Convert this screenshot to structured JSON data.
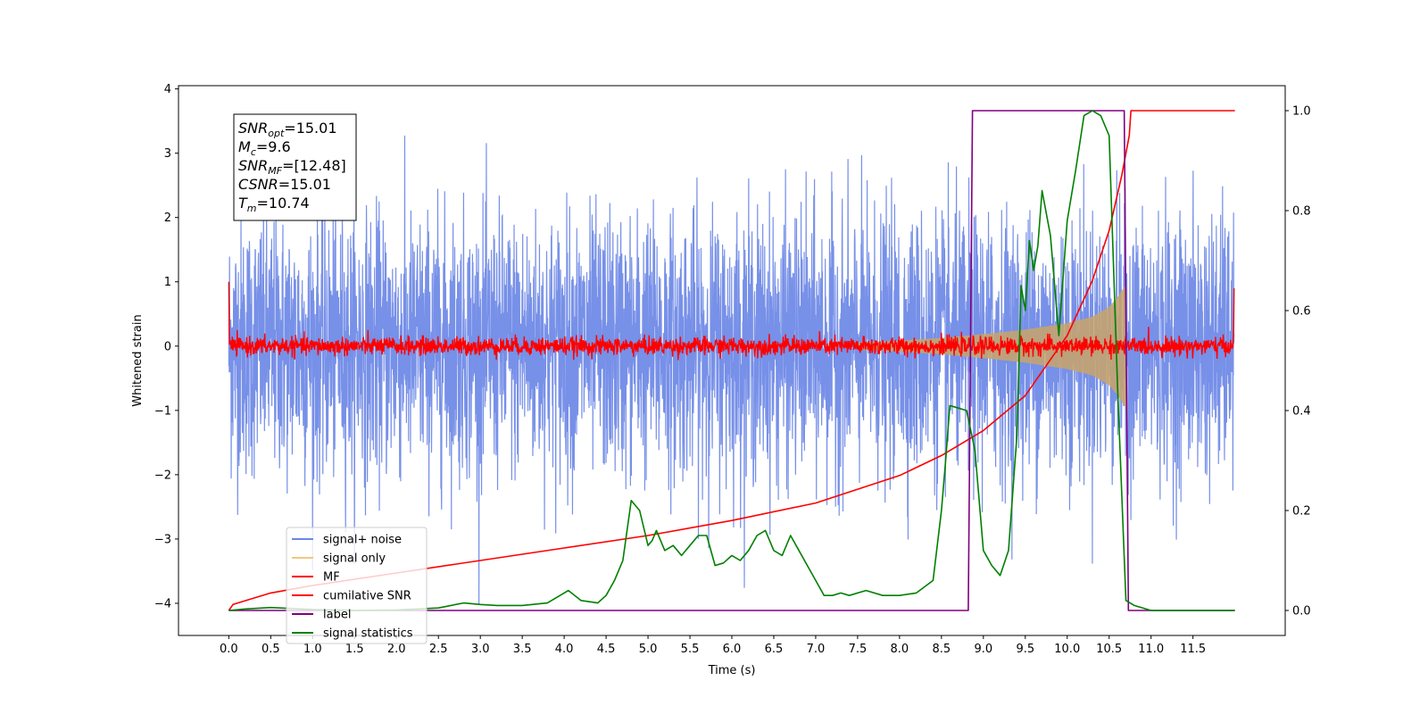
{
  "chart_data": {
    "type": "line",
    "title": "",
    "xlabel": "Time (s)",
    "ylabel": "Whitened strain",
    "xlim": [
      -0.6,
      12.6
    ],
    "ylim_left": [
      -4.5,
      4.05
    ],
    "ylim_right": [
      -0.05,
      1.05
    ],
    "xticks": [
      0.0,
      0.5,
      1.0,
      1.5,
      2.0,
      2.5,
      3.0,
      3.5,
      4.0,
      4.5,
      5.0,
      5.5,
      6.0,
      6.5,
      7.0,
      7.5,
      8.0,
      8.5,
      9.0,
      9.5,
      10.0,
      10.5,
      11.0,
      11.5
    ],
    "xtick_labels": [
      "0.0",
      "0.5",
      "1.0",
      "1.5",
      "2.0",
      "2.5",
      "3.0",
      "3.5",
      "4.0",
      "4.5",
      "5.0",
      "5.5",
      "6.0",
      "6.5",
      "7.0",
      "7.5",
      "8.0",
      "8.5",
      "9.0",
      "9.5",
      "10.0",
      "10.5",
      "11.0",
      "11.5"
    ],
    "yticks_left": [
      4,
      3,
      2,
      1,
      0,
      -1,
      -2,
      -3,
      -4
    ],
    "ytick_labels_left": [
      "4",
      "3",
      "2",
      "1",
      "0",
      "−1",
      "−2",
      "−3",
      "−4"
    ],
    "yticks_right": [
      1.0,
      0.8,
      0.6,
      0.4,
      0.2,
      0.0
    ],
    "ytick_labels_right": [
      "1.0",
      "0.8",
      "0.6",
      "0.4",
      "0.2",
      "0.0"
    ],
    "grid": false,
    "legend_position": "lower-left",
    "legend": [
      {
        "label": "signal+ noise",
        "color": "#6b87e6"
      },
      {
        "label": "signal only",
        "color": "#f5c77e"
      },
      {
        "label": "MF",
        "color": "#ff0000"
      },
      {
        "label": "cumilative SNR",
        "color": "#ff0000"
      },
      {
        "label": "label",
        "color": "#800080"
      },
      {
        "label": "signal statistics",
        "color": "#008000"
      }
    ],
    "info_box": [
      {
        "base": "SNR",
        "sub": "opt",
        "value": "=15.01"
      },
      {
        "base": "M",
        "sub": "c",
        "value": "=9.6"
      },
      {
        "base": "SNR",
        "sub": "MF",
        "value": "=[12.48]"
      },
      {
        "base": "CSNR",
        "sub": "",
        "value": "=15.01"
      },
      {
        "base": "T",
        "sub": "m",
        "value": "=10.74"
      }
    ],
    "series": [
      {
        "name": "signal+ noise",
        "axis": "left",
        "kind": "noise",
        "x_range": [
          0.0,
          11.99
        ],
        "std": 1.0,
        "peaks_max": 3.65,
        "peaks_min": -4.15
      },
      {
        "name": "signal only",
        "axis": "left",
        "kind": "chirp-envelope",
        "x": [
          7.5,
          8.0,
          8.5,
          9.0,
          9.5,
          10.0,
          10.3,
          10.5,
          10.6,
          10.7
        ],
        "y": [
          0.05,
          0.08,
          0.12,
          0.18,
          0.25,
          0.35,
          0.45,
          0.6,
          0.75,
          0.95
        ]
      },
      {
        "name": "MF",
        "axis": "left",
        "kind": "noise",
        "x_range": [
          0.0,
          11.99
        ],
        "std": 0.07,
        "start_value": 1.0,
        "end_value": 0.9
      },
      {
        "name": "cumilative SNR",
        "axis": "right",
        "x": [
          0.0,
          0.05,
          0.5,
          1.0,
          2.0,
          3.0,
          4.0,
          5.0,
          6.0,
          7.0,
          8.0,
          8.5,
          9.0,
          9.5,
          10.0,
          10.3,
          10.5,
          10.65,
          10.74,
          10.76,
          12.0
        ],
        "y": [
          0.0,
          0.012,
          0.035,
          0.05,
          0.075,
          0.1,
          0.125,
          0.15,
          0.18,
          0.215,
          0.27,
          0.31,
          0.36,
          0.43,
          0.55,
          0.66,
          0.76,
          0.87,
          0.95,
          1.0,
          1.0
        ]
      },
      {
        "name": "label",
        "axis": "right",
        "x": [
          0.0,
          8.82,
          8.87,
          10.68,
          10.73,
          12.0
        ],
        "y": [
          0.0,
          0.0,
          1.0,
          1.0,
          0.0,
          0.0
        ]
      },
      {
        "name": "signal statistics",
        "axis": "right",
        "x": [
          0.0,
          0.2,
          0.5,
          1.0,
          1.5,
          2.0,
          2.5,
          2.8,
          3.0,
          3.2,
          3.5,
          3.8,
          4.0,
          4.05,
          4.2,
          4.4,
          4.5,
          4.6,
          4.7,
          4.8,
          4.85,
          4.9,
          5.0,
          5.05,
          5.1,
          5.2,
          5.3,
          5.4,
          5.5,
          5.6,
          5.7,
          5.8,
          5.9,
          6.0,
          6.1,
          6.2,
          6.3,
          6.4,
          6.5,
          6.6,
          6.7,
          6.8,
          6.9,
          7.0,
          7.1,
          7.2,
          7.3,
          7.4,
          7.6,
          7.8,
          8.0,
          8.2,
          8.4,
          8.5,
          8.55,
          8.6,
          8.7,
          8.8,
          8.9,
          9.0,
          9.1,
          9.2,
          9.3,
          9.4,
          9.45,
          9.5,
          9.55,
          9.6,
          9.65,
          9.7,
          9.8,
          9.9,
          10.0,
          10.1,
          10.2,
          10.3,
          10.4,
          10.5,
          10.6,
          10.7,
          10.8,
          11.0,
          12.0
        ],
        "y": [
          0.0,
          0.003,
          0.006,
          0.002,
          0.0,
          0.001,
          0.005,
          0.015,
          0.012,
          0.01,
          0.01,
          0.015,
          0.035,
          0.04,
          0.02,
          0.015,
          0.03,
          0.06,
          0.1,
          0.22,
          0.21,
          0.2,
          0.13,
          0.14,
          0.16,
          0.12,
          0.13,
          0.11,
          0.13,
          0.15,
          0.15,
          0.09,
          0.095,
          0.11,
          0.1,
          0.12,
          0.15,
          0.16,
          0.12,
          0.11,
          0.15,
          0.12,
          0.09,
          0.06,
          0.03,
          0.03,
          0.035,
          0.03,
          0.04,
          0.03,
          0.03,
          0.035,
          0.06,
          0.2,
          0.3,
          0.41,
          0.405,
          0.4,
          0.32,
          0.12,
          0.09,
          0.07,
          0.12,
          0.35,
          0.65,
          0.6,
          0.74,
          0.68,
          0.73,
          0.84,
          0.75,
          0.55,
          0.78,
          0.88,
          0.99,
          1.0,
          0.99,
          0.95,
          0.45,
          0.02,
          0.01,
          0.0,
          0.0
        ]
      }
    ]
  }
}
